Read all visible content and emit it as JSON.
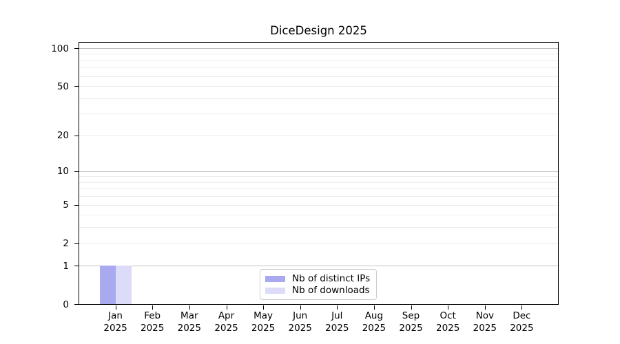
{
  "chart_data": {
    "type": "bar",
    "title": "DiceDesign 2025",
    "categories": [
      "Jan",
      "Feb",
      "Mar",
      "Apr",
      "May",
      "Jun",
      "Jul",
      "Aug",
      "Sep",
      "Oct",
      "Nov",
      "Dec"
    ],
    "category_year": "2025",
    "series": [
      {
        "name": "Nb of distinct IPs",
        "color": "#a9a9f0",
        "values": [
          1,
          0,
          0,
          0,
          0,
          0,
          0,
          0,
          0,
          0,
          0,
          0
        ]
      },
      {
        "name": "Nb of downloads",
        "color": "#dcdcf8",
        "values": [
          1,
          0,
          0,
          0,
          0,
          0,
          0,
          0,
          0,
          0,
          0,
          0
        ]
      }
    ],
    "xlabel": "",
    "ylabel": "",
    "yaxis": {
      "scale": "log1p",
      "tick_values": [
        0,
        1,
        2,
        5,
        10,
        20,
        50,
        100
      ],
      "major_grid_values": [
        1,
        10,
        100
      ],
      "minor_grid_values": [
        2,
        3,
        4,
        5,
        6,
        7,
        8,
        9,
        20,
        30,
        40,
        50,
        60,
        70,
        80,
        90
      ],
      "ylim": [
        0,
        112
      ]
    },
    "legend": {
      "position": "lower center",
      "entries": [
        "Nb of distinct IPs",
        "Nb of downloads"
      ]
    },
    "grid": true,
    "colors": {
      "major_grid": "#c0c0c0",
      "minor_grid": "#ebebeb",
      "spine": "#000000",
      "background": "#ffffff"
    }
  }
}
